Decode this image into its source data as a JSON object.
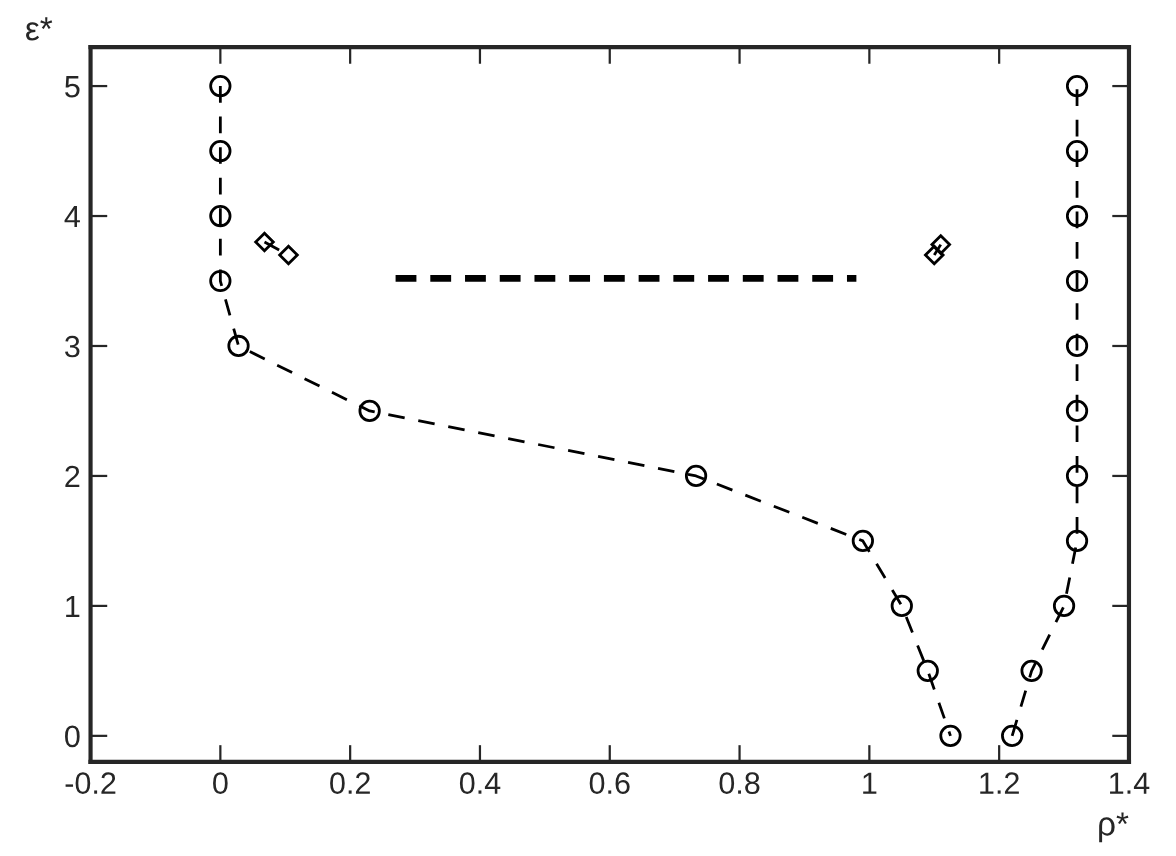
{
  "chart_data": {
    "type": "line",
    "xlabel": "ρ*",
    "ylabel": "ε*",
    "xlim": [
      -0.2,
      1.4
    ],
    "xticks": [
      -0.2,
      0,
      0.2,
      0.4,
      0.6,
      0.8,
      1,
      1.2,
      1.4
    ],
    "ylim": [
      -0.2,
      5.3
    ],
    "yticks": [
      0,
      1,
      2,
      3,
      4,
      5
    ],
    "grid": false,
    "legend": false,
    "series": [
      {
        "color": "#000000",
        "marker": "circle",
        "line_style": "dashed",
        "x": [
          0,
          0,
          0,
          0,
          0.028,
          0.23,
          0.733,
          0.99,
          1.05,
          1.09,
          1.125
        ],
        "values": [
          5,
          4.5,
          4,
          3.5,
          3,
          2.5,
          2,
          1.5,
          1,
          0.5,
          0
        ]
      },
      {
        "color": "#000000",
        "marker": "circle",
        "line_style": "dashed",
        "x": [
          1.22,
          1.25,
          1.3,
          1.32,
          1.32,
          1.32,
          1.32,
          1.32,
          1.32,
          1.32,
          1.32
        ],
        "values": [
          0,
          0.5,
          1,
          1.5,
          2,
          2.5,
          3,
          3.5,
          4,
          4.5,
          5
        ]
      },
      {
        "color": "#000000",
        "marker": "diamond",
        "line_style": "dashed",
        "x": [
          0.068,
          0.105
        ],
        "values": [
          3.8,
          3.7
        ]
      },
      {
        "color": "#000000",
        "marker": "diamond",
        "line_style": "dashed",
        "x": [
          1.1,
          1.11
        ],
        "values": [
          3.7,
          3.78
        ]
      },
      {
        "color": "#000000",
        "marker": "none",
        "line_style": "dashed",
        "x": [
          0.27,
          0.98
        ],
        "values": [
          3.52,
          3.52
        ]
      }
    ]
  }
}
